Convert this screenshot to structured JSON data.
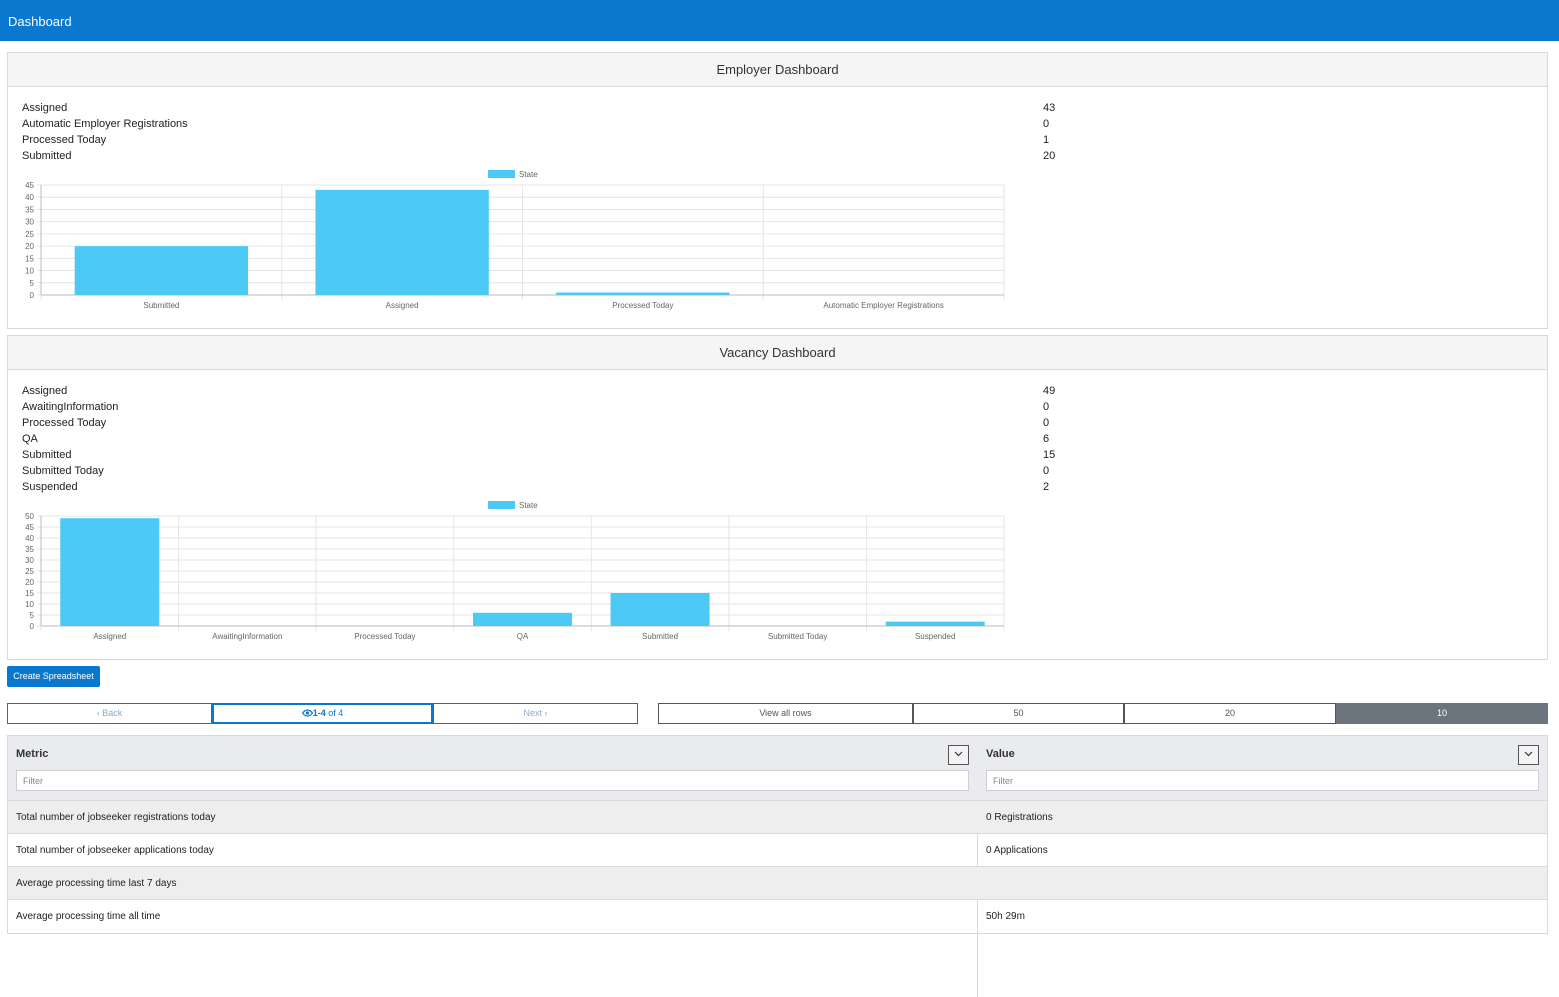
{
  "header": {
    "title": "Dashboard"
  },
  "employer": {
    "title": "Employer Dashboard",
    "stats": [
      {
        "label": "Assigned",
        "value": "43"
      },
      {
        "label": "Automatic Employer Registrations",
        "value": "0"
      },
      {
        "label": "Processed Today",
        "value": "1"
      },
      {
        "label": "Submitted",
        "value": "20"
      }
    ]
  },
  "vacancy": {
    "title": "Vacancy Dashboard",
    "stats": [
      {
        "label": "Assigned",
        "value": "49"
      },
      {
        "label": "AwaitingInformation",
        "value": "0"
      },
      {
        "label": "Processed Today",
        "value": "0"
      },
      {
        "label": "QA",
        "value": "6"
      },
      {
        "label": "Submitted",
        "value": "15"
      },
      {
        "label": "Submitted Today",
        "value": "0"
      },
      {
        "label": "Suspended",
        "value": "2"
      }
    ]
  },
  "chart_data": [
    {
      "type": "bar",
      "categories": [
        "Submitted",
        "Assigned",
        "Processed Today",
        "Automatic Employer Registrations"
      ],
      "series": [
        {
          "name": "State",
          "values": [
            20,
            43,
            1,
            0
          ],
          "color": "#4dc9f6"
        }
      ],
      "ylim": [
        0,
        45
      ],
      "yticks": [
        0,
        5,
        10,
        15,
        20,
        25,
        30,
        35,
        40,
        45
      ],
      "legend": "top-center",
      "grid": true
    },
    {
      "type": "bar",
      "categories": [
        "Assigned",
        "AwaitingInformation",
        "Processed Today",
        "QA",
        "Submitted",
        "Submitted Today",
        "Suspended"
      ],
      "series": [
        {
          "name": "State",
          "values": [
            49,
            0,
            0,
            6,
            15,
            0,
            2
          ],
          "color": "#4dc9f6"
        }
      ],
      "ylim": [
        0,
        50
      ],
      "yticks": [
        0,
        5,
        10,
        15,
        20,
        25,
        30,
        35,
        40,
        45,
        50
      ],
      "legend": "top-center",
      "grid": true
    }
  ],
  "actions": {
    "create_spreadsheet": "Create Spreadsheet"
  },
  "pager": {
    "back": "Back",
    "range_bold": "1-4",
    "range_rest": " of 4",
    "next": "Next"
  },
  "rows_options": {
    "all": "View all rows",
    "opt50": "50",
    "opt20": "20",
    "opt10": "10"
  },
  "table": {
    "columns": [
      {
        "label": "Metric",
        "filter_placeholder": "Filter"
      },
      {
        "label": "Value",
        "filter_placeholder": "Filter"
      }
    ],
    "rows": [
      {
        "metric": "Total number of jobseeker registrations today",
        "value": "0 Registrations"
      },
      {
        "metric": "Total number of jobseeker applications today",
        "value": "0 Applications"
      },
      {
        "metric": "Average processing time last 7 days",
        "value": ""
      },
      {
        "metric": "Average processing time all time",
        "value": "50h 29m"
      }
    ]
  },
  "colors": {
    "brand": "#0a78cf",
    "bar": "#4dc9f6",
    "active_rows": "#6c757d"
  }
}
